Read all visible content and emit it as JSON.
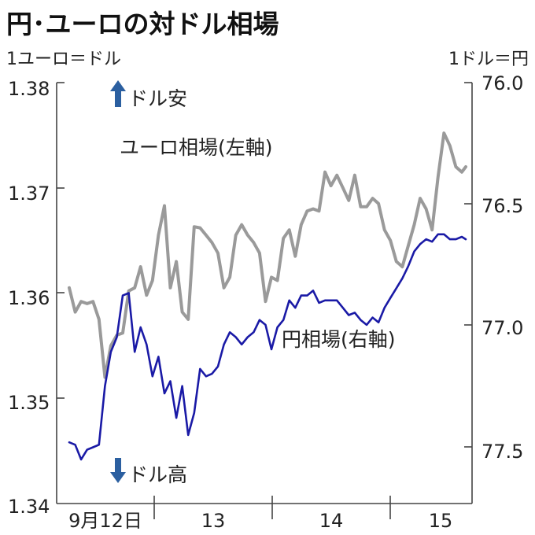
{
  "chart_data": {
    "type": "line",
    "title": "円･ユーロの対ドル相場",
    "left_unit": "1ユーロ＝ドル",
    "right_unit": "1ドル＝円",
    "left_axis": {
      "ticks": [
        "1.38",
        "1.37",
        "1.36",
        "1.35",
        "1.34"
      ],
      "range": [
        1.34,
        1.38
      ]
    },
    "right_axis": {
      "ticks": [
        "76.0",
        "76.5",
        "77.0",
        "77.5"
      ],
      "range": [
        75.98,
        77.7
      ],
      "inverted": true
    },
    "x_ticks": [
      "9月12日",
      "13",
      "14",
      "15"
    ],
    "annotations": {
      "top": "ドル安",
      "bottom": "ドル高"
    },
    "colors": {
      "euro": "#9a9a9a",
      "yen": "#1a1aa6",
      "arrow": "#2b5fa0",
      "axis": "#444444"
    },
    "series": [
      {
        "name": "ユーロ相場(左軸)",
        "axis": "left",
        "x": [
          0,
          0.015,
          0.03,
          0.045,
          0.06,
          0.075,
          0.09,
          0.105,
          0.12,
          0.135,
          0.15,
          0.165,
          0.18,
          0.195,
          0.21,
          0.225,
          0.24,
          0.255,
          0.27,
          0.285,
          0.3,
          0.315,
          0.33,
          0.345,
          0.36,
          0.375,
          0.39,
          0.405,
          0.42,
          0.435,
          0.45,
          0.465,
          0.48,
          0.495,
          0.51,
          0.525,
          0.54,
          0.555,
          0.57,
          0.585,
          0.6,
          0.615,
          0.63,
          0.645,
          0.66,
          0.675,
          0.69,
          0.705,
          0.72,
          0.735,
          0.75,
          0.765,
          0.78,
          0.795,
          0.81,
          0.825,
          0.84,
          0.855,
          0.87,
          0.885,
          0.9,
          0.915,
          0.93,
          0.945,
          0.96,
          0.975,
          0.99,
          1.0
        ],
        "values": [
          1.3605,
          1.3582,
          1.3592,
          1.359,
          1.3592,
          1.3575,
          1.352,
          1.355,
          1.356,
          1.3562,
          1.3602,
          1.3605,
          1.3625,
          1.3598,
          1.3612,
          1.3655,
          1.3683,
          1.3605,
          1.363,
          1.3582,
          1.3575,
          1.3663,
          1.3662,
          1.3655,
          1.3648,
          1.3638,
          1.3605,
          1.3615,
          1.3655,
          1.3665,
          1.3655,
          1.3648,
          1.3638,
          1.3592,
          1.3615,
          1.3612,
          1.3652,
          1.366,
          1.3635,
          1.3665,
          1.3678,
          1.368,
          1.3678,
          1.3715,
          1.3702,
          1.3712,
          1.37,
          1.3688,
          1.3712,
          1.3682,
          1.3682,
          1.369,
          1.3685,
          1.366,
          1.365,
          1.363,
          1.3625,
          1.3645,
          1.3665,
          1.369,
          1.368,
          1.366,
          1.371,
          1.3752,
          1.374,
          1.372,
          1.3715,
          1.372
        ]
      },
      {
        "name": "円相場(右軸)",
        "axis": "right",
        "x": [
          0,
          0.015,
          0.03,
          0.045,
          0.06,
          0.075,
          0.09,
          0.105,
          0.12,
          0.135,
          0.15,
          0.165,
          0.18,
          0.195,
          0.21,
          0.225,
          0.24,
          0.255,
          0.27,
          0.285,
          0.3,
          0.315,
          0.33,
          0.345,
          0.36,
          0.375,
          0.39,
          0.405,
          0.42,
          0.435,
          0.45,
          0.465,
          0.48,
          0.495,
          0.51,
          0.525,
          0.54,
          0.555,
          0.57,
          0.585,
          0.6,
          0.615,
          0.63,
          0.645,
          0.66,
          0.675,
          0.69,
          0.705,
          0.72,
          0.735,
          0.75,
          0.765,
          0.78,
          0.795,
          0.81,
          0.825,
          0.84,
          0.855,
          0.87,
          0.885,
          0.9,
          0.915,
          0.93,
          0.945,
          0.96,
          0.975,
          0.99,
          1.0
        ],
        "values": [
          77.45,
          77.46,
          77.52,
          77.48,
          77.47,
          77.46,
          77.22,
          77.08,
          77.02,
          76.85,
          76.84,
          77.08,
          76.98,
          77.05,
          77.18,
          77.1,
          77.25,
          77.2,
          77.35,
          77.22,
          77.42,
          77.33,
          77.15,
          77.18,
          77.17,
          77.14,
          77.05,
          77.0,
          77.02,
          77.05,
          77.02,
          77.0,
          76.95,
          76.97,
          77.07,
          76.98,
          76.95,
          76.87,
          76.9,
          76.85,
          76.85,
          76.83,
          76.88,
          76.87,
          76.87,
          76.87,
          76.9,
          76.93,
          76.92,
          76.95,
          76.97,
          76.94,
          76.96,
          76.9,
          76.86,
          76.82,
          76.78,
          76.73,
          76.67,
          76.64,
          76.62,
          76.63,
          76.6,
          76.6,
          76.62,
          76.62,
          76.61,
          76.62
        ]
      }
    ]
  }
}
